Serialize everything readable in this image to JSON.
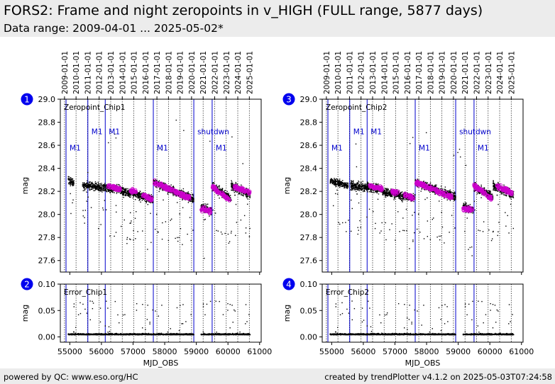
{
  "header": {
    "title": "FORS2: Frame and night zeropoints in v_HIGH (FULL range, 5877 days)",
    "subtitle": "Data range: 2009-04-01 ... 2025-05-02*"
  },
  "footer": {
    "left": "powered by QC: www.eso.org/HC",
    "right": "created by trendPlotter v4.1.2 on 2025-05-03T07:24:58"
  },
  "colors": {
    "background": "#ffffff",
    "band": "#ececec",
    "data_points": "#000000",
    "night_points": "#cc00cc",
    "event_lines": "#0000cc",
    "year_lines": "#000000",
    "badge": "#0000ee"
  },
  "chart_data": [
    {
      "id": 1,
      "type": "scatter",
      "label": "Zeropoint_Chip1",
      "ylabel": "mag",
      "xlabel": "MJD_OBS",
      "ylim": [
        27.5,
        29.0
      ],
      "yticks": [
        27.6,
        27.8,
        28.0,
        28.2,
        28.4,
        28.6,
        28.8,
        29.0
      ],
      "xlim": [
        54700,
        61050
      ],
      "xticks": [
        55000,
        56000,
        57000,
        58000,
        59000,
        60000,
        61000
      ],
      "years": [
        {
          "label": "2009-01-01",
          "mjd": 54832
        },
        {
          "label": "2010-01-01",
          "mjd": 55197
        },
        {
          "label": "2011-01-01",
          "mjd": 55562
        },
        {
          "label": "2012-01-01",
          "mjd": 55927
        },
        {
          "label": "2013-01-01",
          "mjd": 56293
        },
        {
          "label": "2014-01-01",
          "mjd": 56658
        },
        {
          "label": "2015-01-01",
          "mjd": 57023
        },
        {
          "label": "2016-01-01",
          "mjd": 57388
        },
        {
          "label": "2017-01-01",
          "mjd": 57754
        },
        {
          "label": "2018-01-01",
          "mjd": 58119
        },
        {
          "label": "2019-01-01",
          "mjd": 58484
        },
        {
          "label": "2020-01-01",
          "mjd": 58849
        },
        {
          "label": "2021-01-01",
          "mjd": 59215
        },
        {
          "label": "2022-01-01",
          "mjd": 59580
        },
        {
          "label": "2023-01-01",
          "mjd": 59945
        },
        {
          "label": "2024-01-01",
          "mjd": 60310
        },
        {
          "label": "2025-01-01",
          "mjd": 60676
        }
      ],
      "events": [
        {
          "mjd": 54880,
          "label": "M1",
          "label_y": 28.58
        },
        {
          "mjd": 55570,
          "label": "M1",
          "label_y": 28.72
        },
        {
          "mjd": 56120,
          "label": "M1",
          "label_y": 28.72
        },
        {
          "mjd": 57640,
          "label": "M1",
          "label_y": 28.58
        },
        {
          "mjd": 58920,
          "label": "shutdwn",
          "label_y": 28.72
        },
        {
          "mjd": 59500,
          "label": "M1",
          "label_y": 28.58
        }
      ],
      "frame_segments": [
        {
          "x": [
            54950,
            55130
          ],
          "y": [
            28.3,
            28.27
          ],
          "spread": 0.03
        },
        {
          "x": [
            55400,
            56600
          ],
          "y": [
            28.25,
            28.22
          ],
          "spread": 0.035
        },
        {
          "x": [
            56600,
            57640
          ],
          "y": [
            28.21,
            28.13
          ],
          "spread": 0.035
        },
        {
          "x": [
            57640,
            58920
          ],
          "y": [
            28.28,
            28.13
          ],
          "spread": 0.035
        },
        {
          "x": [
            59150,
            59480
          ],
          "y": [
            28.06,
            28.03
          ],
          "spread": 0.035
        },
        {
          "x": [
            59500,
            60100
          ],
          "y": [
            28.24,
            28.14
          ],
          "spread": 0.035
        },
        {
          "x": [
            60100,
            60700
          ],
          "y": [
            28.25,
            28.17
          ],
          "spread": 0.035
        }
      ],
      "night_segments": [
        {
          "x": [
            56200,
            56600
          ],
          "y": [
            28.25,
            28.22
          ]
        },
        {
          "x": [
            56900,
            57100
          ],
          "y": [
            28.21,
            28.2
          ]
        },
        {
          "x": [
            57300,
            57600
          ],
          "y": [
            28.17,
            28.13
          ]
        },
        {
          "x": [
            57660,
            58800
          ],
          "y": [
            28.28,
            28.14
          ]
        },
        {
          "x": [
            59150,
            59450
          ],
          "y": [
            28.05,
            28.03
          ]
        },
        {
          "x": [
            59500,
            60050
          ],
          "y": [
            28.24,
            28.13
          ]
        },
        {
          "x": [
            60200,
            60700
          ],
          "y": [
            28.24,
            28.19
          ]
        }
      ]
    },
    {
      "id": 2,
      "type": "scatter",
      "label": "Error_Chip1",
      "ylabel": "mag",
      "xlabel": "MJD_OBS",
      "ylim": [
        -0.01,
        0.1
      ],
      "yticks": [
        0.0,
        0.05,
        0.1
      ],
      "ytick_labels": [
        "0.00",
        "0.05",
        "0.10"
      ],
      "xlim": [
        54700,
        61050
      ],
      "xticks": [
        55000,
        56000,
        57000,
        58000,
        59000,
        60000,
        61000
      ],
      "base": 0.004,
      "segments": [
        [
          54950,
          58920
        ],
        [
          59150,
          60700
        ]
      ]
    },
    {
      "id": 3,
      "type": "scatter",
      "label": "Zeropoint_Chip2",
      "ylabel": "mag",
      "xlabel": "MJD_OBS",
      "ylim": [
        27.5,
        29.0
      ],
      "yticks": [
        27.6,
        27.8,
        28.0,
        28.2,
        28.4,
        28.6,
        28.8,
        29.0
      ],
      "xlim": [
        54700,
        61050
      ],
      "xticks": [
        55000,
        56000,
        57000,
        58000,
        59000,
        60000,
        61000
      ],
      "years": [
        {
          "label": "2009-01-01",
          "mjd": 54832
        },
        {
          "label": "2010-01-01",
          "mjd": 55197
        },
        {
          "label": "2011-01-01",
          "mjd": 55562
        },
        {
          "label": "2012-01-01",
          "mjd": 55927
        },
        {
          "label": "2013-01-01",
          "mjd": 56293
        },
        {
          "label": "2014-01-01",
          "mjd": 56658
        },
        {
          "label": "2015-01-01",
          "mjd": 57023
        },
        {
          "label": "2016-01-01",
          "mjd": 57388
        },
        {
          "label": "2017-01-01",
          "mjd": 57754
        },
        {
          "label": "2018-01-01",
          "mjd": 58119
        },
        {
          "label": "2019-01-01",
          "mjd": 58484
        },
        {
          "label": "2020-01-01",
          "mjd": 58849
        },
        {
          "label": "2021-01-01",
          "mjd": 59215
        },
        {
          "label": "2022-01-01",
          "mjd": 59580
        },
        {
          "label": "2023-01-01",
          "mjd": 59945
        },
        {
          "label": "2024-01-01",
          "mjd": 60310
        },
        {
          "label": "2025-01-01",
          "mjd": 60676
        }
      ],
      "events": [
        {
          "mjd": 54880,
          "label": "M1",
          "label_y": 28.58
        },
        {
          "mjd": 55570,
          "label": "M1",
          "label_y": 28.72
        },
        {
          "mjd": 56120,
          "label": "M1",
          "label_y": 28.72
        },
        {
          "mjd": 57640,
          "label": "M1",
          "label_y": 28.58
        },
        {
          "mjd": 58920,
          "label": "shutdwn",
          "label_y": 28.72
        },
        {
          "mjd": 59500,
          "label": "M1",
          "label_y": 28.58
        }
      ],
      "frame_segments": [
        {
          "x": [
            54950,
            55530
          ],
          "y": [
            28.29,
            28.25
          ],
          "spread": 0.03
        },
        {
          "x": [
            55600,
            56600
          ],
          "y": [
            28.25,
            28.22
          ],
          "spread": 0.035
        },
        {
          "x": [
            56600,
            57640
          ],
          "y": [
            28.2,
            28.14
          ],
          "spread": 0.035
        },
        {
          "x": [
            57640,
            58920
          ],
          "y": [
            28.28,
            28.15
          ],
          "spread": 0.035
        },
        {
          "x": [
            59150,
            59480
          ],
          "y": [
            28.07,
            28.04
          ],
          "spread": 0.035
        },
        {
          "x": [
            59500,
            60100
          ],
          "y": [
            28.24,
            28.15
          ],
          "spread": 0.035
        },
        {
          "x": [
            60100,
            60750
          ],
          "y": [
            28.25,
            28.17
          ],
          "spread": 0.035
        }
      ],
      "night_segments": [
        {
          "x": [
            56200,
            56600
          ],
          "y": [
            28.25,
            28.22
          ]
        },
        {
          "x": [
            56900,
            57100
          ],
          "y": [
            28.2,
            28.19
          ]
        },
        {
          "x": [
            57300,
            57600
          ],
          "y": [
            28.17,
            28.14
          ]
        },
        {
          "x": [
            57660,
            58800
          ],
          "y": [
            28.28,
            28.15
          ]
        },
        {
          "x": [
            59150,
            59450
          ],
          "y": [
            28.05,
            28.04
          ]
        },
        {
          "x": [
            59500,
            60050
          ],
          "y": [
            28.25,
            28.14
          ]
        },
        {
          "x": [
            60200,
            60700
          ],
          "y": [
            28.25,
            28.19
          ]
        }
      ]
    },
    {
      "id": 4,
      "type": "scatter",
      "label": "Error_Chip2",
      "ylabel": "mag",
      "xlabel": "MJD_OBS",
      "ylim": [
        -0.01,
        0.1
      ],
      "yticks": [
        0.0,
        0.05,
        0.1
      ],
      "ytick_labels": [
        "0.00",
        "0.05",
        "0.10"
      ],
      "xlim": [
        54700,
        61050
      ],
      "xticks": [
        55000,
        56000,
        57000,
        58000,
        59000,
        60000,
        61000
      ],
      "base": 0.004,
      "segments": [
        [
          54950,
          58920
        ],
        [
          59150,
          60750
        ]
      ]
    }
  ]
}
